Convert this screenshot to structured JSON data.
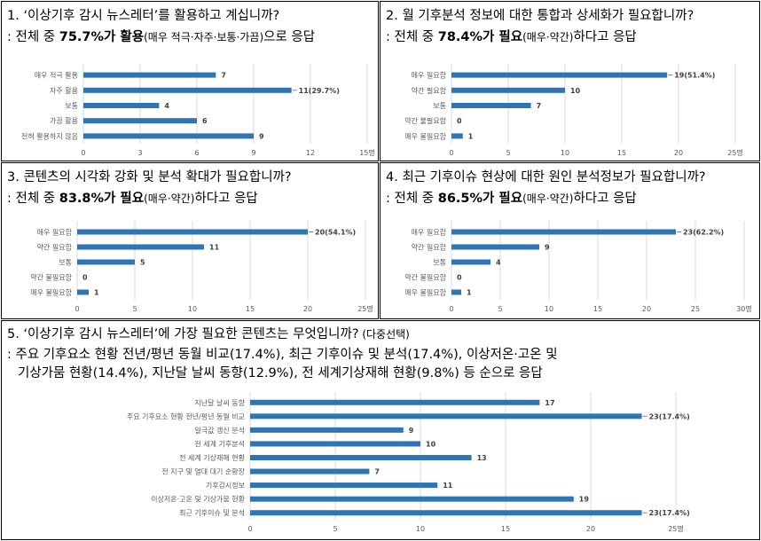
{
  "panels": [
    {
      "question": "1. ‘이상기후 감시 뉴스레터’를 활용하고 계십니까?",
      "answer_prefix": ": 전체 중 ",
      "answer_bold": "75.7%가 활용",
      "answer_small": "(매우 적극·자주·보통·가끔)",
      "answer_suffix": "으로 응답"
    },
    {
      "question": "2. 월 기후분석 정보에 대한 통합과 상세화가 필요합니까?",
      "answer_prefix": ": 전체 중 ",
      "answer_bold": "78.4%가 필요",
      "answer_small": "(매우·약간)",
      "answer_suffix": "하다고 응답"
    },
    {
      "question": "3. 콘텐츠의 시각화 강화 및 분석 확대가 필요합니까?",
      "answer_prefix": ": 전체 중 ",
      "answer_bold": "83.8%가 필요",
      "answer_small": "(매우·약간)",
      "answer_suffix": "하다고 응답"
    },
    {
      "question": "4. 최근 기후이슈 현상에 대한 원인 분석정보가 필요합니까?",
      "answer_prefix": ": 전체 중 ",
      "answer_bold": "86.5%가 필요",
      "answer_small": "(매우·약간)",
      "answer_suffix": "하다고 응답"
    },
    {
      "question": "5. ‘이상기후 감시 뉴스레터’에 가장 필요한 콘텐츠는 무엇입니까?",
      "question_small": " (다중선택)",
      "answer_line1": ": 주요 기후요소 현황 전년/평년 동월 비교(17.4%), 최근 기후이슈 및 분석(17.4%), 이상저온·고온 및",
      "answer_line2": "기상가뭄 현황(14.4%), 지난달 날씨 동향(12.9%), 전 세계기상재해 현황(9.8%) 등 순으로 응답"
    }
  ],
  "chart_data": [
    {
      "type": "bar",
      "orientation": "horizontal",
      "categories": [
        "매우 적극 활용",
        "자주 활용",
        "보통",
        "가끔 활용",
        "전혀 활용하지 않음"
      ],
      "values": [
        7,
        11,
        4,
        6,
        9
      ],
      "labels": [
        "7",
        "11(29.7%)",
        "4",
        "6",
        "9"
      ],
      "xlim": [
        0,
        15
      ],
      "ticks": [
        "0",
        "3",
        "6",
        "9",
        "12",
        "15명"
      ],
      "bar_color": "#2e75b6"
    },
    {
      "type": "bar",
      "orientation": "horizontal",
      "categories": [
        "매우 필요함",
        "약간 필요함",
        "보통",
        "약간 불필요함",
        "매우 불필요함"
      ],
      "values": [
        19,
        10,
        7,
        0,
        1
      ],
      "labels": [
        "19(51.4%)",
        "10",
        "7",
        "0",
        "1"
      ],
      "xlim": [
        0,
        25
      ],
      "ticks": [
        "0",
        "5",
        "10",
        "15",
        "20",
        "25명"
      ],
      "bar_color": "#2e75b6"
    },
    {
      "type": "bar",
      "orientation": "horizontal",
      "categories": [
        "매우 필요함",
        "약간 필요함",
        "보통",
        "약간 불필요함",
        "매우 불필요함"
      ],
      "values": [
        20,
        11,
        5,
        0,
        1
      ],
      "labels": [
        "20(54.1%)",
        "11",
        "5",
        "0",
        "1"
      ],
      "xlim": [
        0,
        25
      ],
      "ticks": [
        "0",
        "5",
        "10",
        "15",
        "20",
        "25명"
      ],
      "bar_color": "#2e75b6"
    },
    {
      "type": "bar",
      "orientation": "horizontal",
      "categories": [
        "매우 필요함",
        "약간 필요함",
        "보통",
        "약간 불필요함",
        "매우 불필요함"
      ],
      "values": [
        23,
        9,
        4,
        0,
        1
      ],
      "labels": [
        "23(62.2%)",
        "9",
        "4",
        "0",
        "1"
      ],
      "xlim": [
        0,
        30
      ],
      "ticks": [
        "0",
        "5",
        "10",
        "15",
        "20",
        "25",
        "30명"
      ],
      "bar_color": "#2e75b6"
    },
    {
      "type": "bar",
      "orientation": "horizontal",
      "categories": [
        "지난달 날씨 동향",
        "주요 기후요소 현황 전년/평년 동월 비교",
        "일극값 갱신 분석",
        "전 세계 기후분석",
        "전 세계 기상재해 현황",
        "전 지구 및 열대 대기 순환장",
        "기후감시정보",
        "이상저온·고온 및 기상가뭄 현황",
        "최근 기후이슈 및 분석"
      ],
      "values": [
        17,
        23,
        9,
        10,
        13,
        7,
        11,
        19,
        23
      ],
      "labels": [
        "17",
        "23(17.4%)",
        "9",
        "10",
        "13",
        "7",
        "11",
        "19",
        "23(17.4%)"
      ],
      "xlim": [
        0,
        25
      ],
      "ticks": [
        "0",
        "5",
        "10",
        "15",
        "20",
        "25명"
      ],
      "bar_color": "#2e75b6"
    }
  ]
}
